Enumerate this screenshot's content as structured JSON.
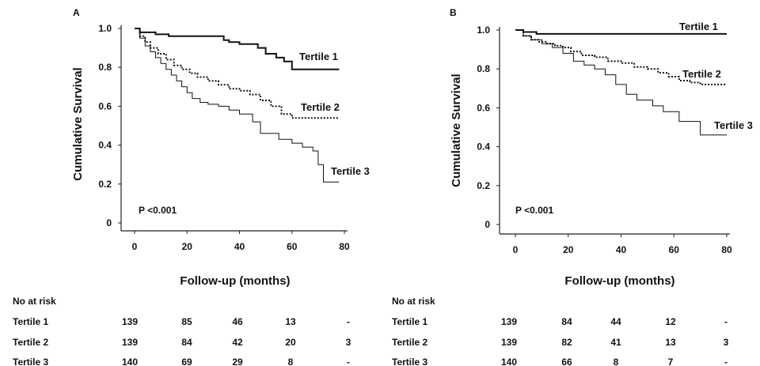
{
  "chart_data": [
    {
      "panel": "A",
      "type": "line",
      "step": true,
      "xlabel": "Follow-up (months)",
      "ylabel": "Cumulative Survival",
      "xlim": [
        0,
        80
      ],
      "ylim": [
        0,
        1.0
      ],
      "xticks": [
        0,
        20,
        40,
        60,
        80
      ],
      "yticks": [
        0,
        0.2,
        0.4,
        0.6,
        0.8,
        1.0
      ],
      "ytick_labels": [
        "0",
        "0.2",
        "0.4",
        "0.6",
        "0.8",
        "1.0"
      ],
      "grid": false,
      "annotation": "P <0.001",
      "series": [
        {
          "name": "Tertile 1",
          "style": "solid",
          "width": 2,
          "x": [
            0,
            2,
            8,
            13,
            34,
            36,
            40,
            47,
            50,
            54,
            57,
            60,
            78
          ],
          "y": [
            1.0,
            0.98,
            0.97,
            0.96,
            0.94,
            0.93,
            0.92,
            0.9,
            0.87,
            0.85,
            0.83,
            0.79,
            0.79
          ]
        },
        {
          "name": "Tertile 2",
          "style": "dotted",
          "width": 2,
          "x": [
            0,
            2,
            4,
            6,
            9,
            12,
            15,
            18,
            21,
            24,
            28,
            32,
            36,
            40,
            44,
            48,
            52,
            56,
            60,
            78
          ],
          "y": [
            1.0,
            0.96,
            0.93,
            0.9,
            0.87,
            0.84,
            0.81,
            0.79,
            0.77,
            0.75,
            0.73,
            0.71,
            0.69,
            0.68,
            0.66,
            0.63,
            0.6,
            0.56,
            0.54,
            0.54
          ]
        },
        {
          "name": "Tertile 3",
          "style": "solid",
          "width": 1,
          "x": [
            0,
            2,
            4,
            6,
            8,
            10,
            12,
            14,
            16,
            18,
            20,
            22,
            25,
            28,
            32,
            36,
            40,
            45,
            48,
            55,
            60,
            64,
            68,
            70,
            72,
            78
          ],
          "y": [
            1.0,
            0.95,
            0.91,
            0.88,
            0.85,
            0.82,
            0.79,
            0.76,
            0.73,
            0.7,
            0.67,
            0.64,
            0.62,
            0.61,
            0.6,
            0.58,
            0.56,
            0.52,
            0.46,
            0.43,
            0.41,
            0.39,
            0.37,
            0.3,
            0.21,
            0.21
          ]
        }
      ],
      "risk_table": {
        "header": "No at risk",
        "columns": [
          "0",
          "20",
          "40",
          "60",
          "80"
        ],
        "rows": [
          {
            "label": "Tertile 1",
            "values": [
              "139",
              "85",
              "46",
              "13",
              "-"
            ]
          },
          {
            "label": "Tertile 2",
            "values": [
              "139",
              "84",
              "42",
              "20",
              "3"
            ]
          },
          {
            "label": "Tertile 3",
            "values": [
              "140",
              "69",
              "29",
              "8",
              "-"
            ]
          }
        ]
      }
    },
    {
      "panel": "B",
      "type": "line",
      "step": true,
      "xlabel": "Follow-up (months)",
      "ylabel": "Cumulative Survival",
      "xlim": [
        0,
        80
      ],
      "ylim": [
        0,
        1.0
      ],
      "xticks": [
        0,
        20,
        40,
        60,
        80
      ],
      "yticks": [
        0,
        0.2,
        0.4,
        0.6,
        0.8,
        1.0
      ],
      "ytick_labels": [
        "0",
        "0.2",
        "0.4",
        "0.6",
        "0.8",
        "1.0"
      ],
      "grid": false,
      "annotation": "P <0.001",
      "series": [
        {
          "name": "Tertile 1",
          "style": "solid",
          "width": 2,
          "x": [
            0,
            3,
            8,
            80
          ],
          "y": [
            1.0,
            0.99,
            0.98,
            0.98
          ]
        },
        {
          "name": "Tertile 2",
          "style": "dotted",
          "width": 2,
          "x": [
            0,
            3,
            6,
            9,
            12,
            15,
            18,
            21,
            25,
            30,
            35,
            40,
            45,
            50,
            54,
            58,
            62,
            66,
            70,
            80
          ],
          "y": [
            1.0,
            0.97,
            0.95,
            0.94,
            0.93,
            0.92,
            0.91,
            0.89,
            0.87,
            0.86,
            0.84,
            0.83,
            0.81,
            0.8,
            0.78,
            0.76,
            0.74,
            0.73,
            0.72,
            0.72
          ]
        },
        {
          "name": "Tertile 3",
          "style": "solid",
          "width": 1,
          "x": [
            0,
            3,
            6,
            10,
            14,
            18,
            22,
            26,
            30,
            34,
            38,
            42,
            46,
            52,
            56,
            62,
            70,
            80
          ],
          "y": [
            1.0,
            0.97,
            0.95,
            0.93,
            0.91,
            0.88,
            0.84,
            0.82,
            0.8,
            0.77,
            0.72,
            0.67,
            0.64,
            0.61,
            0.58,
            0.53,
            0.46,
            0.46
          ]
        }
      ],
      "risk_table": {
        "header": "No at risk",
        "columns": [
          "0",
          "20",
          "40",
          "60",
          "80"
        ],
        "rows": [
          {
            "label": "Tertile 1",
            "values": [
              "139",
              "84",
              "44",
              "12",
              "-"
            ]
          },
          {
            "label": "Tertile 2",
            "values": [
              "139",
              "82",
              "41",
              "13",
              "3"
            ]
          },
          {
            "label": "Tertile 3",
            "values": [
              "140",
              "66",
              "8",
              "7",
              "-"
            ]
          }
        ]
      }
    }
  ]
}
